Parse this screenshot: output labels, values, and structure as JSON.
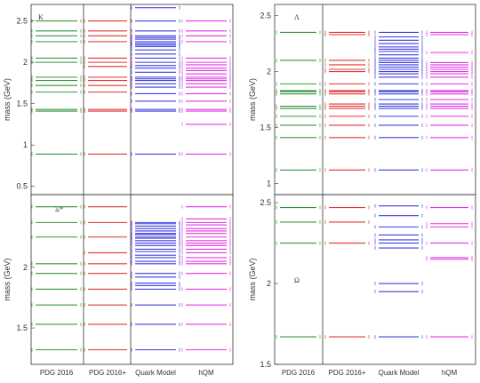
{
  "colors": {
    "pdg2016": "#1f8a2a",
    "pdg2016plus": "#e02020",
    "quark_model": "#2a2ae0",
    "hqm": "#e020e0",
    "frame": "#333333"
  },
  "chart_data": [
    {
      "type": "level-diagram",
      "title": "K",
      "ylabel": "mass (GeV)",
      "ylim": [
        0.4,
        2.7
      ],
      "yticks": [
        "0.5",
        "1",
        "1.5",
        "2",
        "2.5"
      ],
      "yticks_values": [
        0.5,
        1,
        1.5,
        2,
        2.5
      ],
      "xlabels": [],
      "grid": false,
      "series": [
        {
          "color_key": "pdg2016",
          "values": [
            0.89,
            1.41,
            1.43,
            1.64,
            1.72,
            1.78,
            1.82,
            2.0,
            2.05,
            2.25,
            2.32,
            2.38,
            2.5
          ]
        },
        {
          "color_key": "pdg2016plus",
          "values": [
            0.89,
            1.41,
            1.43,
            1.64,
            1.72,
            1.78,
            1.82,
            1.95,
            2.0,
            2.05,
            2.25,
            2.32,
            2.38,
            2.5
          ]
        },
        {
          "color_key": "quark_model",
          "values": [
            0.89,
            1.41,
            1.43,
            1.53,
            1.62,
            1.7,
            1.74,
            1.78,
            1.8,
            1.82,
            1.88,
            1.93,
            1.96,
            2.0,
            2.05,
            2.1,
            2.15,
            2.19,
            2.21,
            2.23,
            2.25,
            2.28,
            2.3,
            2.32,
            2.38,
            2.5,
            2.66
          ]
        },
        {
          "color_key": "hqm",
          "values": [
            0.89,
            1.25,
            1.41,
            1.43,
            1.53,
            1.62,
            1.7,
            1.74,
            1.78,
            1.8,
            1.82,
            1.86,
            1.9,
            1.93,
            1.97,
            2.0,
            2.05,
            2.25,
            2.32,
            2.38,
            2.5
          ]
        }
      ]
    },
    {
      "type": "level-diagram",
      "title": "Λ",
      "ylabel": "mass (GeV)",
      "ylim": [
        0.9,
        2.6
      ],
      "yticks": [
        "1",
        "1.5",
        "2",
        "2.5"
      ],
      "yticks_values": [
        1,
        1.5,
        2,
        2.5
      ],
      "xlabels": [],
      "grid": false,
      "series": [
        {
          "color_key": "pdg2016",
          "values": [
            1.12,
            1.41,
            1.52,
            1.6,
            1.67,
            1.69,
            1.8,
            1.82,
            1.83,
            1.89,
            2.1,
            2.35
          ]
        },
        {
          "color_key": "pdg2016plus",
          "values": [
            1.12,
            1.41,
            1.52,
            1.6,
            1.67,
            1.69,
            1.71,
            1.8,
            1.82,
            1.83,
            1.89,
            2.0,
            2.02,
            2.06,
            2.1,
            2.33,
            2.35
          ]
        },
        {
          "color_key": "quark_model",
          "values": [
            1.12,
            1.41,
            1.52,
            1.6,
            1.67,
            1.69,
            1.71,
            1.75,
            1.8,
            1.82,
            1.83,
            1.89,
            1.95,
            1.98,
            2.0,
            2.02,
            2.04,
            2.06,
            2.08,
            2.1,
            2.12,
            2.15,
            2.18,
            2.2,
            2.22,
            2.25,
            2.28,
            2.31,
            2.35
          ]
        },
        {
          "color_key": "hqm",
          "values": [
            1.12,
            1.41,
            1.52,
            1.6,
            1.67,
            1.69,
            1.71,
            1.75,
            1.8,
            1.82,
            1.83,
            1.89,
            1.95,
            1.98,
            2.0,
            2.02,
            2.04,
            2.06,
            2.08,
            2.17,
            2.33,
            2.35
          ]
        }
      ]
    },
    {
      "type": "level-diagram",
      "title": "Ξ*",
      "ylabel": "mass (GeV)",
      "ylim": [
        1.2,
        2.6
      ],
      "yticks": [
        "1.5",
        "2"
      ],
      "yticks_values": [
        1.5,
        2
      ],
      "xlabels": [
        "PDG 2016",
        "PDG 2016+",
        "Quark Model",
        "hQM"
      ],
      "grid": false,
      "series": [
        {
          "color_key": "pdg2016",
          "values": [
            1.32,
            1.53,
            1.69,
            1.82,
            1.95,
            2.03,
            2.25,
            2.37,
            2.5
          ]
        },
        {
          "color_key": "pdg2016plus",
          "values": [
            1.32,
            1.53,
            1.69,
            1.82,
            1.95,
            2.03,
            2.12,
            2.25,
            2.37,
            2.5
          ]
        },
        {
          "color_key": "quark_model",
          "values": [
            1.32,
            1.53,
            1.69,
            1.82,
            1.85,
            1.87,
            1.92,
            1.95,
            2.03,
            2.05,
            2.08,
            2.1,
            2.13,
            2.15,
            2.18,
            2.2,
            2.22,
            2.24,
            2.25,
            2.27,
            2.28,
            2.3,
            2.32,
            2.34,
            2.36,
            2.37
          ]
        },
        {
          "color_key": "hqm",
          "values": [
            1.32,
            1.53,
            1.69,
            1.82,
            1.95,
            2.03,
            2.05,
            2.08,
            2.12,
            2.15,
            2.18,
            2.2,
            2.22,
            2.25,
            2.28,
            2.3,
            2.32,
            2.35,
            2.37,
            2.4,
            2.5
          ]
        }
      ]
    },
    {
      "type": "level-diagram",
      "title": "Ω",
      "ylabel": "mass (GeV)",
      "ylim": [
        1.5,
        2.55
      ],
      "yticks": [
        "1.5",
        "2",
        "2.5"
      ],
      "yticks_values": [
        1.5,
        2,
        2.5
      ],
      "xlabels": [
        "PDG 2016",
        "PDG 2016+",
        "Quark Model",
        "hQM"
      ],
      "grid": false,
      "series": [
        {
          "color_key": "pdg2016",
          "values": [
            1.67,
            2.25,
            2.38,
            2.47
          ]
        },
        {
          "color_key": "pdg2016plus",
          "values": [
            1.67,
            2.25,
            2.38,
            2.47
          ]
        },
        {
          "color_key": "quark_model",
          "values": [
            1.67,
            1.95,
            2.0,
            2.22,
            2.25,
            2.27,
            2.3,
            2.35,
            2.42,
            2.48
          ]
        },
        {
          "color_key": "hqm",
          "values": [
            1.67,
            2.15,
            2.16,
            2.25,
            2.35,
            2.37,
            2.47
          ]
        }
      ]
    }
  ]
}
